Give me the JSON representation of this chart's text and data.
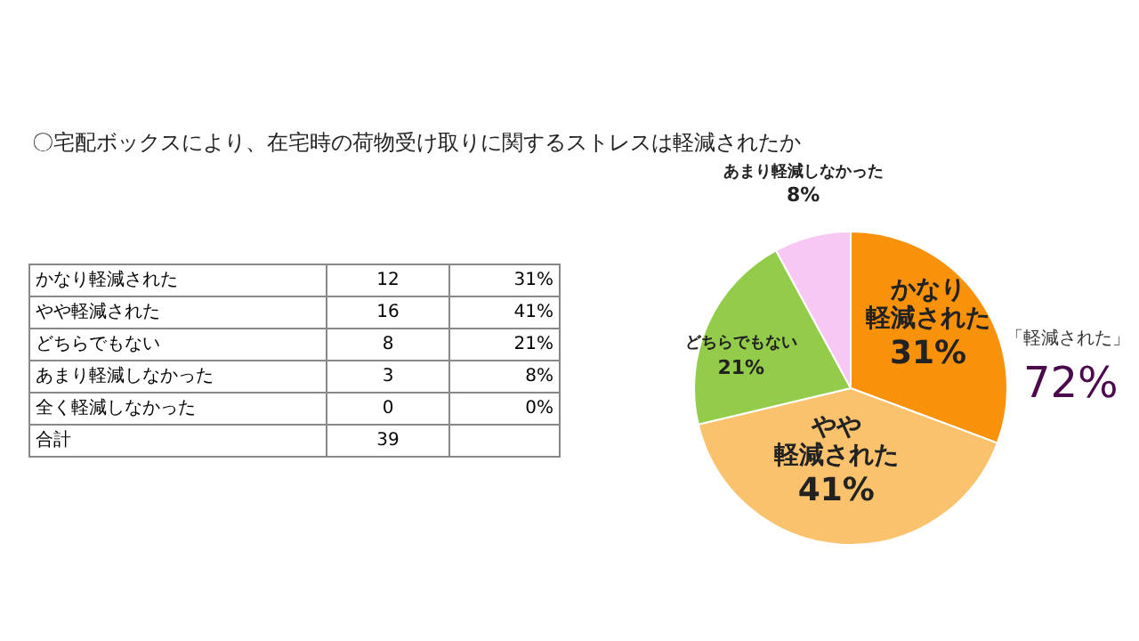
{
  "chart_data": [
    {
      "type": "other",
      "title": "〇宅配ボックスにより、在宅時の荷物受け取りに関するストレスは軽減されたか",
      "categories": [
        "かなり軽減された",
        "やや軽減された",
        "どちらでもない",
        "あまり軽減しなかった",
        "全く軽減しなかった"
      ],
      "series": [
        {
          "values": [
            12,
            16,
            8,
            3,
            0
          ]
        },
        {
          "values": [
            31,
            41,
            21,
            8,
            0
          ],
          "value_labels": [
            "31%",
            "41%",
            "21%",
            "8%",
            "0%"
          ]
        }
      ],
      "data_labels": true,
      "totals": [
        "39"
      ],
      "annotations": [
        "合計"
      ]
    },
    {
      "type": "pie",
      "categories": [
        "かなり軽減された",
        "やや軽減された",
        "どちらでもない",
        "あまり軽減しなかった"
      ],
      "values": [
        31,
        41,
        21,
        8
      ],
      "value_labels": [
        "31%",
        "41%",
        "21%",
        "8%"
      ],
      "colors": [
        "#f7920a",
        "#fbc26e",
        "#92cc4a",
        "#f8c8f4"
      ],
      "data_labels": true,
      "annotations": [
        "「軽減された」",
        "72%"
      ]
    }
  ]
}
